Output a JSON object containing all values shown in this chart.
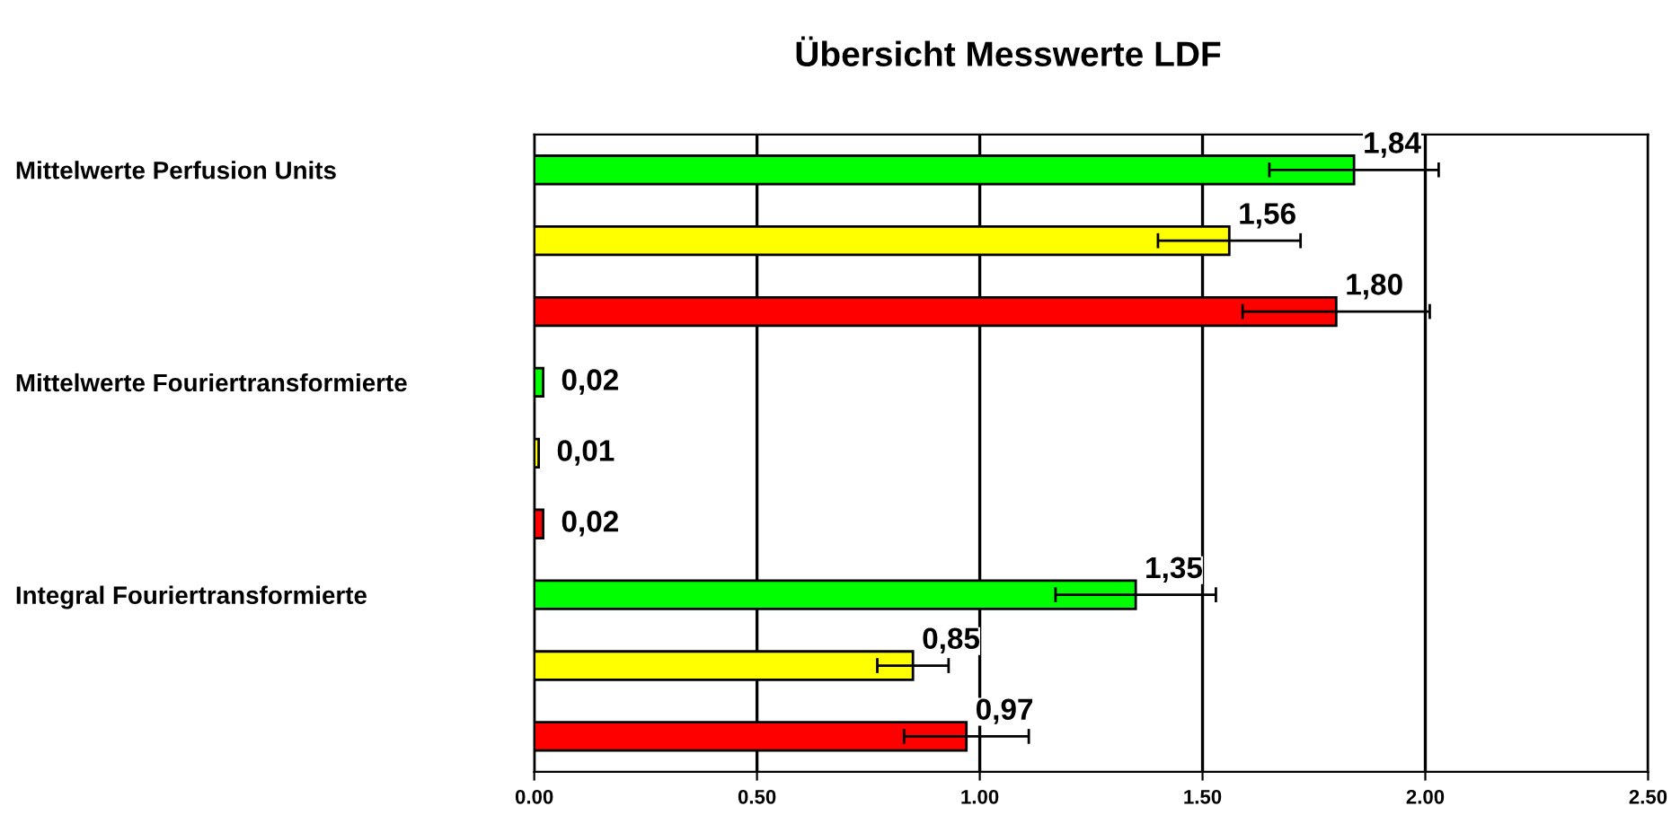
{
  "chart_data": {
    "type": "bar",
    "orientation": "horizontal",
    "title": "Übersicht Messwerte LDF",
    "categories": [
      "Mittelwerte Perfusion Units",
      null,
      null,
      "Mittelwerte Fouriertransformierte",
      null,
      null,
      "Integral Fouriertransformierte",
      null,
      null
    ],
    "values": [
      1.84,
      1.56,
      1.8,
      0.02,
      0.01,
      0.02,
      1.35,
      0.85,
      0.97
    ],
    "colors": [
      "#00ff00",
      "#ffff00",
      "#ff0000",
      "#00ff00",
      "#ffff00",
      "#ff0000",
      "#00ff00",
      "#ffff00",
      "#ff0000"
    ],
    "errors": [
      0.19,
      0.16,
      0.21,
      null,
      null,
      null,
      0.18,
      0.08,
      0.14
    ],
    "value_labels": [
      "1,84",
      "1,56",
      "1,80",
      "0,02",
      "0,01",
      "0,02",
      "1,35",
      "0,85",
      "0,97"
    ],
    "xlim": [
      0,
      2.5
    ],
    "xticks": [
      {
        "value": 0,
        "label": "0.00"
      },
      {
        "value": 0.5,
        "label": "0.50"
      },
      {
        "value": 1.0,
        "label": "1.00"
      },
      {
        "value": 1.5,
        "label": "1.50"
      },
      {
        "value": 2.0,
        "label": "2.00"
      },
      {
        "value": 2.5,
        "label": "2.50"
      }
    ],
    "grid": "x",
    "legend": false
  }
}
